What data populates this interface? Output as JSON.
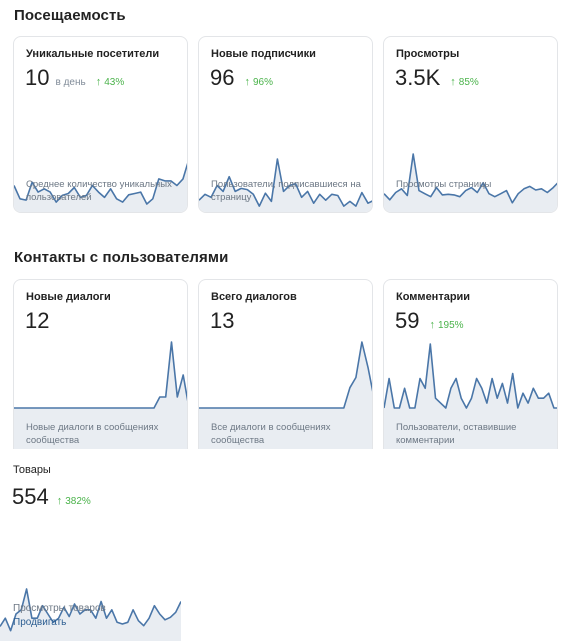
{
  "sections": {
    "attendance": {
      "title": "Посещаемость"
    },
    "contacts": {
      "title": "Контакты с пользователями"
    }
  },
  "cards": {
    "unique_visitors": {
      "title": "Уникальные посетители",
      "value": "10",
      "per_day": "в день",
      "delta": "43%",
      "description": "Среднее количество уникальных пользователей",
      "series": [
        4,
        2,
        1.8,
        4.5,
        3,
        3.5,
        3,
        1.5,
        2.5,
        2.8,
        3.7,
        2.2,
        2.5,
        4,
        3,
        2.2,
        3.5,
        2,
        1.5,
        2.6,
        2.8,
        3,
        1.2,
        2,
        5,
        4.7,
        4.7,
        4,
        5,
        8
      ]
    },
    "new_subscribers": {
      "title": "Новые подписчики",
      "value": "96",
      "delta": "96%",
      "description": "Пользователи, подписавшиеся на страницу",
      "series": [
        2,
        3,
        2.5,
        4.5,
        3.5,
        6,
        3.5,
        4,
        3.8,
        3,
        1,
        3.2,
        1.8,
        9,
        3.5,
        4.5,
        4.8,
        2.5,
        3.5,
        1.5,
        3,
        2,
        3,
        2.8,
        1,
        1.8,
        1,
        3.3,
        1.5,
        2
      ]
    },
    "views": {
      "title": "Просмотры",
      "value": "3.5K",
      "delta": "85%",
      "description": "Просмотры страницы",
      "series": [
        3,
        2,
        3.2,
        3.8,
        2.7,
        9.5,
        3.5,
        3,
        2.5,
        4,
        2.8,
        2.9,
        2.8,
        2.5,
        3.5,
        4,
        3.2,
        4.8,
        3,
        2.5,
        3,
        3.5,
        1.5,
        3,
        3.8,
        4.2,
        3.6,
        3.8,
        3.2,
        4,
        5
      ]
    },
    "new_dialogs": {
      "title": "Новые диалоги",
      "value": "12",
      "description": "Новые диалоги в сообщениях сообщества",
      "series": [
        0,
        0,
        0,
        0,
        0,
        0,
        0,
        0,
        0,
        0,
        0,
        0,
        0,
        0,
        0,
        0,
        0,
        0,
        0,
        0,
        0,
        0,
        0,
        0,
        0,
        1,
        1,
        6,
        1,
        3,
        0
      ]
    },
    "total_dialogs": {
      "title": "Всего диалогов",
      "value": "13",
      "description": "Все диалоги в сообщениях сообщества",
      "series": [
        0,
        0,
        0,
        0,
        0,
        0,
        0,
        0,
        0,
        0,
        0,
        0,
        0,
        0,
        0,
        0,
        0,
        0,
        0,
        0,
        0,
        0,
        0,
        0,
        0,
        2,
        3,
        6.5,
        4,
        1
      ]
    },
    "comments": {
      "title": "Комментарии",
      "value": "59",
      "delta": "195%",
      "description": "Пользователи, оставившие комментарии",
      "series": [
        0,
        3,
        0,
        0,
        2,
        0,
        0,
        3,
        2,
        6.5,
        1,
        0.5,
        0,
        2,
        3,
        1,
        0,
        1,
        3,
        2,
        0.5,
        3,
        1,
        2.5,
        0.5,
        3.5,
        0,
        1.5,
        0.5,
        2,
        1,
        1,
        1.5,
        0,
        0
      ]
    },
    "products": {
      "title": "Товары",
      "value": "554",
      "delta": "382%",
      "description": "Просмотры товаров",
      "promote": "Продвигать",
      "series": [
        1.5,
        2.5,
        1,
        3,
        3.5,
        6,
        2.5,
        2.5,
        4,
        3,
        2,
        2.5,
        3.8,
        2.7,
        4.2,
        3,
        3.5,
        3.5,
        2.5,
        4.5,
        2.5,
        3.5,
        2,
        1.8,
        2,
        3.5,
        2.2,
        1.6,
        2.5,
        4,
        3,
        2.3,
        2.6,
        3.2,
        4.5
      ]
    }
  },
  "colors": {
    "line": "#4a76a8",
    "fill": "#e9edf2",
    "positive": "#4bb34b"
  }
}
